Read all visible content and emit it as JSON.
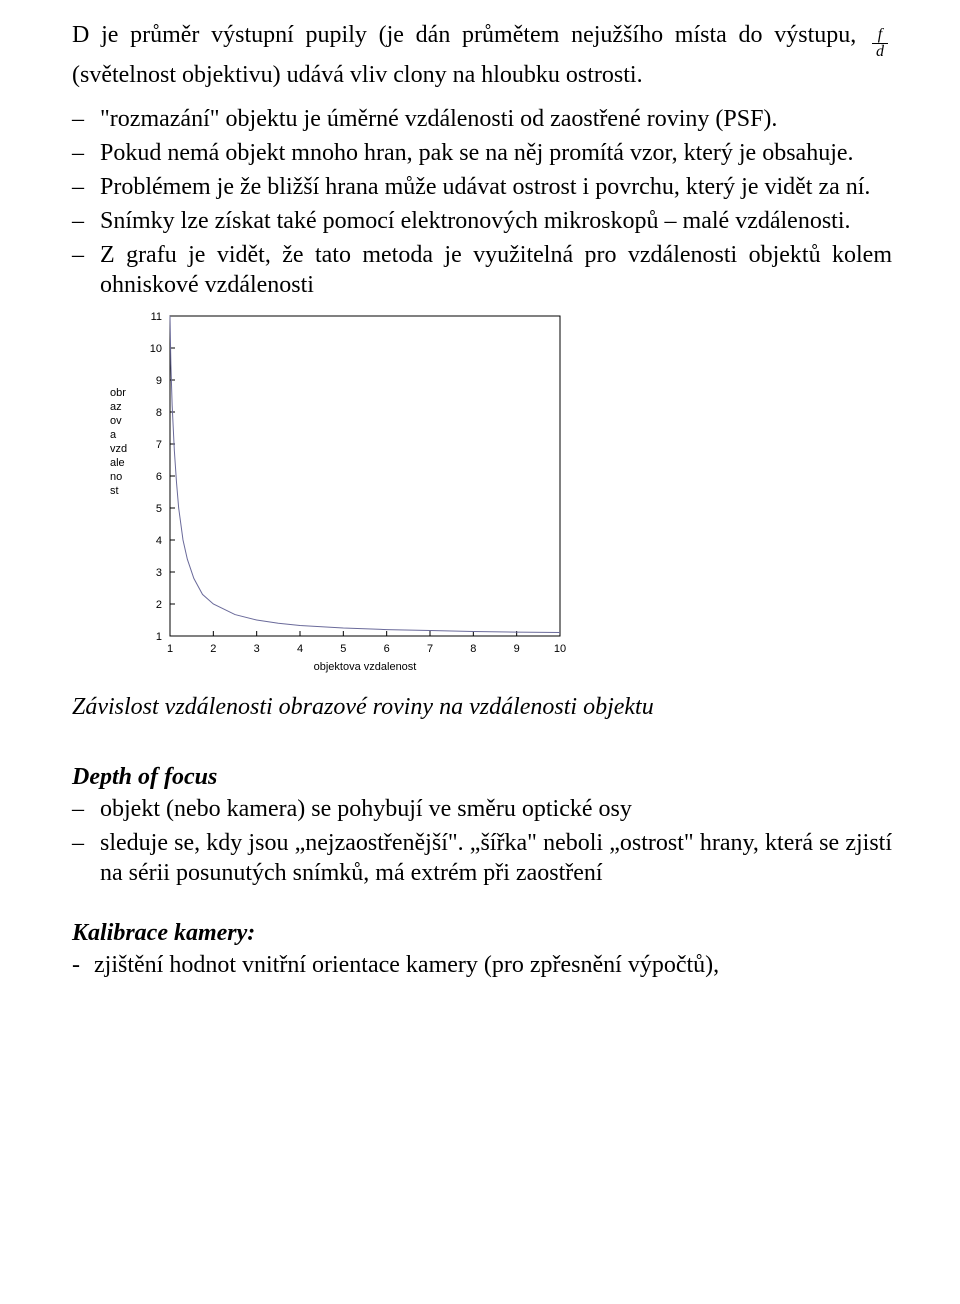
{
  "intro": {
    "line1_a": "D je průměr výstupní pupily (je dán průmětem nejužšího místa do výstupu,",
    "line1_b": "(světelnost objektivu) udává vliv clony na hloubku ostrosti.",
    "frac_num": "f",
    "frac_den": "d"
  },
  "bullets": [
    "\"rozmazání\" objektu je úměrné vzdálenosti od zaostřené roviny (PSF).",
    "Pokud nemá objekt mnoho hran, pak se na něj promítá vzor, který je obsahuje.",
    "Problémem je že bližší hrana může udávat ostrost i povrchu, který je vidět za ní.",
    "Snímky lze získat také pomocí elektronových mikroskopů – malé vzdálenosti.",
    "Z grafu je vidět, že tato metoda je  využitelná pro vzdálenosti objektů kolem ohniskové vzdálenosti"
  ],
  "chart": {
    "type": "line",
    "xlabel": "objektova vzdalenost",
    "ylabel_lines": [
      "obr",
      "az",
      "ov",
      "a",
      "vzd",
      "ale",
      "no",
      "st"
    ],
    "xlim": [
      1,
      10
    ],
    "ylim": [
      1,
      11
    ],
    "xticks": [
      1,
      2,
      3,
      4,
      5,
      6,
      7,
      8,
      9,
      10
    ],
    "yticks": [
      1,
      2,
      3,
      4,
      5,
      6,
      7,
      8,
      9,
      10,
      11
    ],
    "line_color": "#6a6a9a",
    "line_width": 1,
    "frame_color": "#000000",
    "tick_color": "#000000",
    "tick_fontsize": 11,
    "label_fontsize": 11,
    "background_color": "#ffffff",
    "points": [
      [
        1.0,
        11.0
      ],
      [
        1.02,
        9.5
      ],
      [
        1.05,
        8.2
      ],
      [
        1.1,
        6.8
      ],
      [
        1.15,
        5.8
      ],
      [
        1.2,
        5.0
      ],
      [
        1.3,
        4.0
      ],
      [
        1.4,
        3.4
      ],
      [
        1.55,
        2.8
      ],
      [
        1.75,
        2.3
      ],
      [
        2.0,
        2.0
      ],
      [
        2.5,
        1.67
      ],
      [
        3.0,
        1.5
      ],
      [
        3.5,
        1.4
      ],
      [
        4.0,
        1.33
      ],
      [
        5.0,
        1.25
      ],
      [
        6.0,
        1.2
      ],
      [
        7.0,
        1.17
      ],
      [
        8.0,
        1.14
      ],
      [
        9.0,
        1.12
      ],
      [
        10.0,
        1.11
      ]
    ]
  },
  "caption": "Závislost  vzdálenosti obrazové roviny na vzdálenosti objektu",
  "depth": {
    "title": "Depth of focus",
    "items": [
      "objekt (nebo kamera) se pohybují ve směru optické osy",
      "sleduje se, kdy jsou „nejzaostřenější\". „šířka\" neboli „ostrost\" hrany, která se zjistí na sérii posunutých snímků, má extrém při zaostření"
    ]
  },
  "calib": {
    "title": "Kalibrace kamery:",
    "items": [
      "zjištění hodnot vnitřní orientace kamery (pro zpřesnění výpočtů),"
    ]
  }
}
